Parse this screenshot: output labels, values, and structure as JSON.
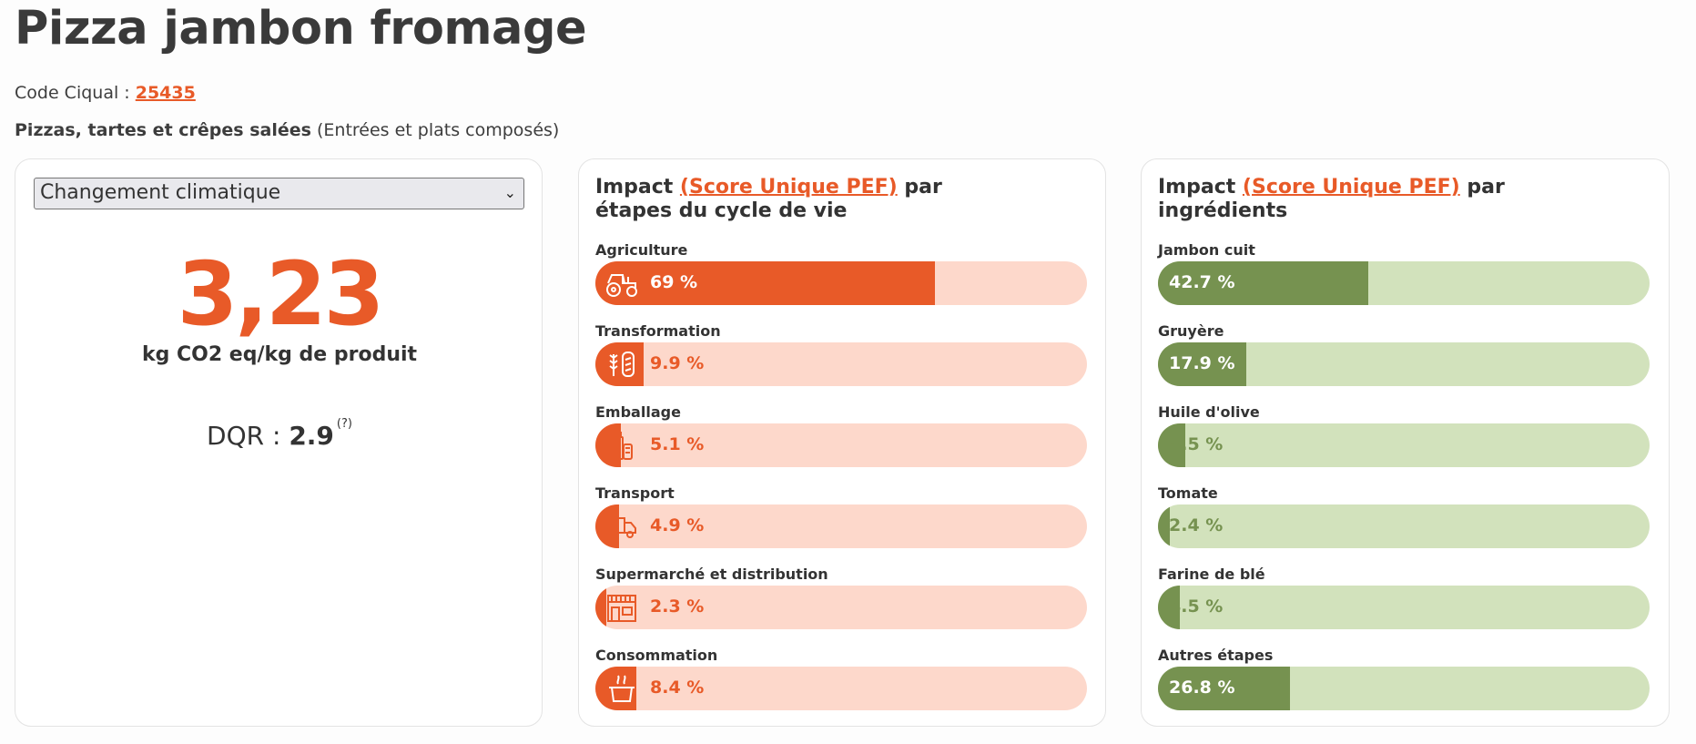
{
  "page": {
    "title": "Pizza jambon fromage",
    "ciqual_label": "Code Ciqual : ",
    "ciqual_code": "25435",
    "category": "Pizzas, tartes et crêpes salées",
    "subcategory": "(Entrées et plats composés)"
  },
  "score_card": {
    "indicator_selected": "Changement climatique",
    "value": "3,23",
    "unit": "kg CO2 eq/kg de produit",
    "dqr_label": "DQR : ",
    "dqr_value": "2.9",
    "dqr_help": "(?)"
  },
  "steps_card": {
    "title_prefix": "Impact ",
    "title_link": "(Score Unique PEF)",
    "title_suffix": " par étapes du cycle de vie",
    "items": [
      {
        "label": "Agriculture",
        "pct_text": "69 %",
        "fraction": 0.69,
        "icon": "tractor-icon"
      },
      {
        "label": "Transformation",
        "pct_text": "9.9 %",
        "fraction": 0.099,
        "icon": "wheat-bread-icon"
      },
      {
        "label": "Emballage",
        "pct_text": "5.1 %",
        "fraction": 0.051,
        "icon": "packaging-icon"
      },
      {
        "label": "Transport",
        "pct_text": "4.9 %",
        "fraction": 0.049,
        "icon": "truck-icon"
      },
      {
        "label": "Supermarché et distribution",
        "pct_text": "2.3 %",
        "fraction": 0.023,
        "icon": "store-icon"
      },
      {
        "label": "Consommation",
        "pct_text": "8.4 %",
        "fraction": 0.084,
        "icon": "cooking-pot-icon"
      }
    ]
  },
  "ingredients_card": {
    "title_prefix": "Impact ",
    "title_link": "(Score Unique PEF)",
    "title_suffix": " par ingrédients",
    "items": [
      {
        "label": "Jambon cuit",
        "pct_text": "42.7 %",
        "fraction": 0.427
      },
      {
        "label": "Gruyère",
        "pct_text": "17.9 %",
        "fraction": 0.179
      },
      {
        "label": "Huile d'olive",
        "pct_text": "5.5 %",
        "fraction": 0.055
      },
      {
        "label": "Tomate",
        "pct_text": "2.4 %",
        "fraction": 0.024
      },
      {
        "label": "Farine de blé",
        "pct_text": "4.5 %",
        "fraction": 0.045
      },
      {
        "label": "Autres étapes",
        "pct_text": "26.8 %",
        "fraction": 0.268
      }
    ]
  },
  "colors": {
    "accent_orange": "#e85a28",
    "orange_track": "#fdd8cb",
    "green_fill": "#769250",
    "green_track": "#d2e2bc"
  }
}
